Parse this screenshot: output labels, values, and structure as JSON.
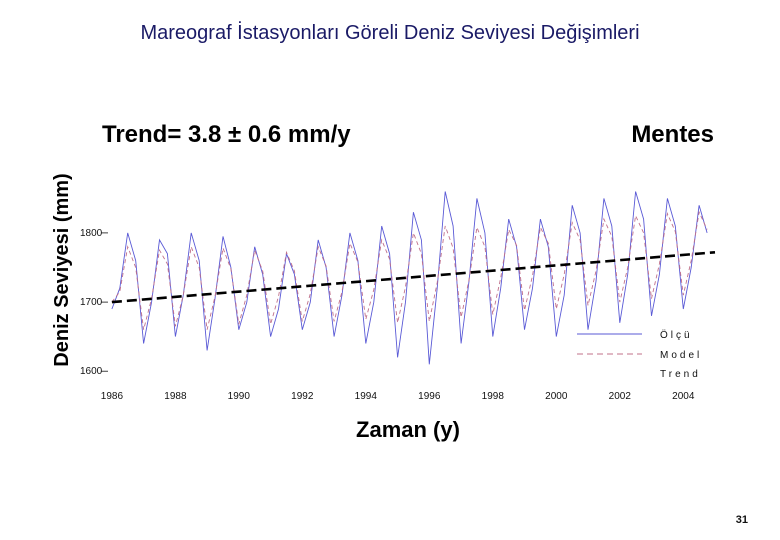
{
  "slide": {
    "title": "Mareograf İstasyonları Göreli Deniz Seviyesi Değişimleri",
    "page_number": "31"
  },
  "chart_data": {
    "type": "line",
    "trend_text": "Trend= 3.8 ± 0.6 mm/y",
    "station": "Mentes",
    "xlabel": "Zaman (y)",
    "ylabel": "Deniz Seviyesi (mm)",
    "xlim": [
      1985.5,
      2005.0
    ],
    "ylim": [
      1580,
      1920
    ],
    "x_ticks": [
      1986,
      1988,
      1990,
      1992,
      1994,
      1996,
      1998,
      2000,
      2002,
      2004
    ],
    "x_tick_labels": [
      "1986",
      "1988",
      "1990",
      "1992",
      "1994",
      "1996",
      "1998",
      "2000",
      "2002",
      "2004"
    ],
    "y_ticks": [
      1600,
      1700,
      1800
    ],
    "y_tick_labels": [
      "1600",
      "1700",
      "1800"
    ],
    "grid": false,
    "legend": {
      "position": "bottom-right",
      "entries": [
        "Ölçü",
        "Model",
        "Trend"
      ]
    },
    "series": [
      {
        "name": "Ölçü",
        "color": "#5a5ad6",
        "style": "solid",
        "x": [
          1986.0,
          1986.25,
          1986.5,
          1986.75,
          1987.0,
          1987.25,
          1987.5,
          1987.75,
          1988.0,
          1988.25,
          1988.5,
          1988.75,
          1989.0,
          1989.25,
          1989.5,
          1989.75,
          1990.0,
          1990.25,
          1990.5,
          1990.75,
          1991.0,
          1991.25,
          1991.5,
          1991.75,
          1992.0,
          1992.25,
          1992.5,
          1992.75,
          1993.0,
          1993.25,
          1993.5,
          1993.75,
          1994.0,
          1994.25,
          1994.5,
          1994.75,
          1995.0,
          1995.25,
          1995.5,
          1995.75,
          1996.0,
          1996.25,
          1996.5,
          1996.75,
          1997.0,
          1997.25,
          1997.5,
          1997.75,
          1998.0,
          1998.25,
          1998.5,
          1998.75,
          1999.0,
          1999.25,
          1999.5,
          1999.75,
          2000.0,
          2000.25,
          2000.5,
          2000.75,
          2001.0,
          2001.25,
          2001.5,
          2001.75,
          2002.0,
          2002.25,
          2002.5,
          2002.75,
          2003.0,
          2003.25,
          2003.5,
          2003.75,
          2004.0,
          2004.25,
          2004.5,
          2004.75
        ],
        "values": [
          1690,
          1720,
          1800,
          1760,
          1640,
          1700,
          1790,
          1770,
          1650,
          1710,
          1800,
          1760,
          1630,
          1705,
          1795,
          1750,
          1660,
          1700,
          1780,
          1740,
          1650,
          1690,
          1770,
          1740,
          1660,
          1700,
          1790,
          1750,
          1650,
          1710,
          1800,
          1760,
          1640,
          1700,
          1810,
          1770,
          1620,
          1700,
          1830,
          1790,
          1610,
          1720,
          1860,
          1810,
          1640,
          1730,
          1850,
          1800,
          1650,
          1720,
          1820,
          1780,
          1660,
          1720,
          1820,
          1780,
          1650,
          1710,
          1840,
          1800,
          1660,
          1730,
          1850,
          1810,
          1670,
          1740,
          1860,
          1820,
          1680,
          1740,
          1850,
          1810,
          1690,
          1750,
          1840,
          1800
        ]
      },
      {
        "name": "Model",
        "color": "#c0708a",
        "style": "dashed",
        "x": [
          1986.0,
          1986.25,
          1986.5,
          1986.75,
          1987.0,
          1987.25,
          1987.5,
          1987.75,
          1988.0,
          1988.25,
          1988.5,
          1988.75,
          1989.0,
          1989.25,
          1989.5,
          1989.75,
          1990.0,
          1990.25,
          1990.5,
          1990.75,
          1991.0,
          1991.25,
          1991.5,
          1991.75,
          1992.0,
          1992.25,
          1992.5,
          1992.75,
          1993.0,
          1993.25,
          1993.5,
          1993.75,
          1994.0,
          1994.25,
          1994.5,
          1994.75,
          1995.0,
          1995.25,
          1995.5,
          1995.75,
          1996.0,
          1996.25,
          1996.5,
          1996.75,
          1997.0,
          1997.25,
          1997.5,
          1997.75,
          1998.0,
          1998.25,
          1998.5,
          1998.75,
          1999.0,
          1999.25,
          1999.5,
          1999.75,
          2000.0,
          2000.25,
          2000.5,
          2000.75,
          2001.0,
          2001.25,
          2001.5,
          2001.75,
          2002.0,
          2002.25,
          2002.5,
          2002.75,
          2003.0,
          2003.25,
          2003.5,
          2003.75,
          2004.0,
          2004.25,
          2004.5,
          2004.75
        ],
        "values": [
          1700,
          1715,
          1780,
          1750,
          1660,
          1705,
          1775,
          1755,
          1665,
          1710,
          1780,
          1750,
          1660,
          1708,
          1778,
          1748,
          1668,
          1710,
          1775,
          1745,
          1668,
          1708,
          1772,
          1745,
          1672,
          1712,
          1780,
          1752,
          1672,
          1715,
          1785,
          1758,
          1675,
          1718,
          1790,
          1762,
          1670,
          1722,
          1800,
          1770,
          1672,
          1728,
          1810,
          1778,
          1678,
          1732,
          1808,
          1780,
          1682,
          1735,
          1805,
          1782,
          1688,
          1738,
          1808,
          1785,
          1690,
          1740,
          1815,
          1790,
          1695,
          1745,
          1820,
          1795,
          1700,
          1750,
          1825,
          1800,
          1705,
          1755,
          1828,
          1802,
          1710,
          1760,
          1830,
          1805
        ]
      },
      {
        "name": "Trend",
        "color": "#000000",
        "style": "dashed-bold",
        "x": [
          1986.0,
          2005.0
        ],
        "values": [
          1700,
          1772
        ]
      }
    ]
  }
}
